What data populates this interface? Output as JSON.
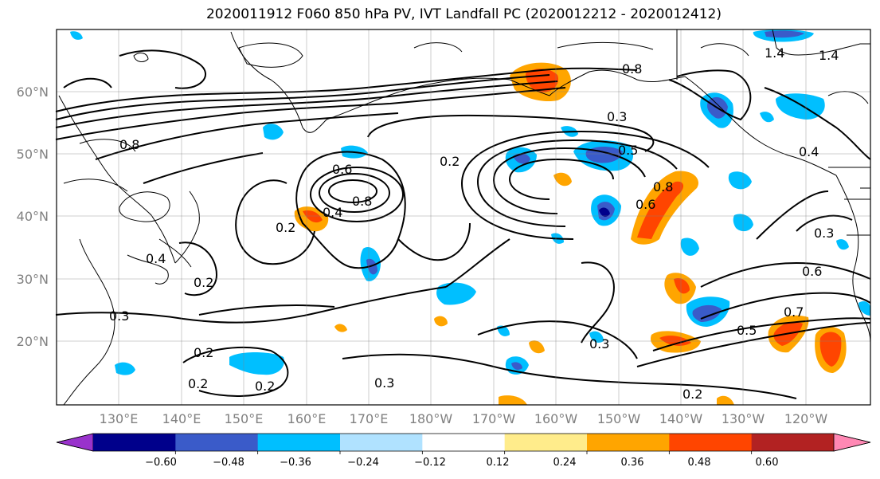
{
  "title": "2020011912 F060 850 hPa PV, IVT Landfall PC (2020012212 - 2020012412)",
  "map": {
    "lat_ticks": [
      "60°N",
      "50°N",
      "40°N",
      "30°N",
      "20°N"
    ],
    "lon_ticks": [
      "130°E",
      "140°E",
      "150°E",
      "160°E",
      "170°E",
      "180°W",
      "170°W",
      "160°W",
      "150°W",
      "140°W",
      "130°W",
      "120°W"
    ],
    "contour_labels": [
      "0.2",
      "0.2",
      "0.2",
      "0.2",
      "0.2",
      "0.2",
      "0.2",
      "0.3",
      "0.3",
      "0.3",
      "0.3",
      "0.3",
      "0.4",
      "0.4",
      "0.4",
      "0.5",
      "0.5",
      "0.6",
      "0.6",
      "0.6",
      "0.7",
      "0.8",
      "0.8",
      "0.8",
      "0.8",
      "1.4",
      "1.4"
    ]
  },
  "colorbar": {
    "colors": [
      "#9932cc",
      "#00008b",
      "#3a5bc9",
      "#00bfff",
      "#b0e2ff",
      "#ffffff",
      "#ffec8b",
      "#ffa500",
      "#ff4500",
      "#b22222",
      "#ff88b4"
    ],
    "tick_labels": [
      "−0.60",
      "−0.48",
      "−0.36",
      "−0.24",
      "−0.12",
      "0.12",
      "0.24",
      "0.36",
      "0.48",
      "0.60"
    ]
  }
}
